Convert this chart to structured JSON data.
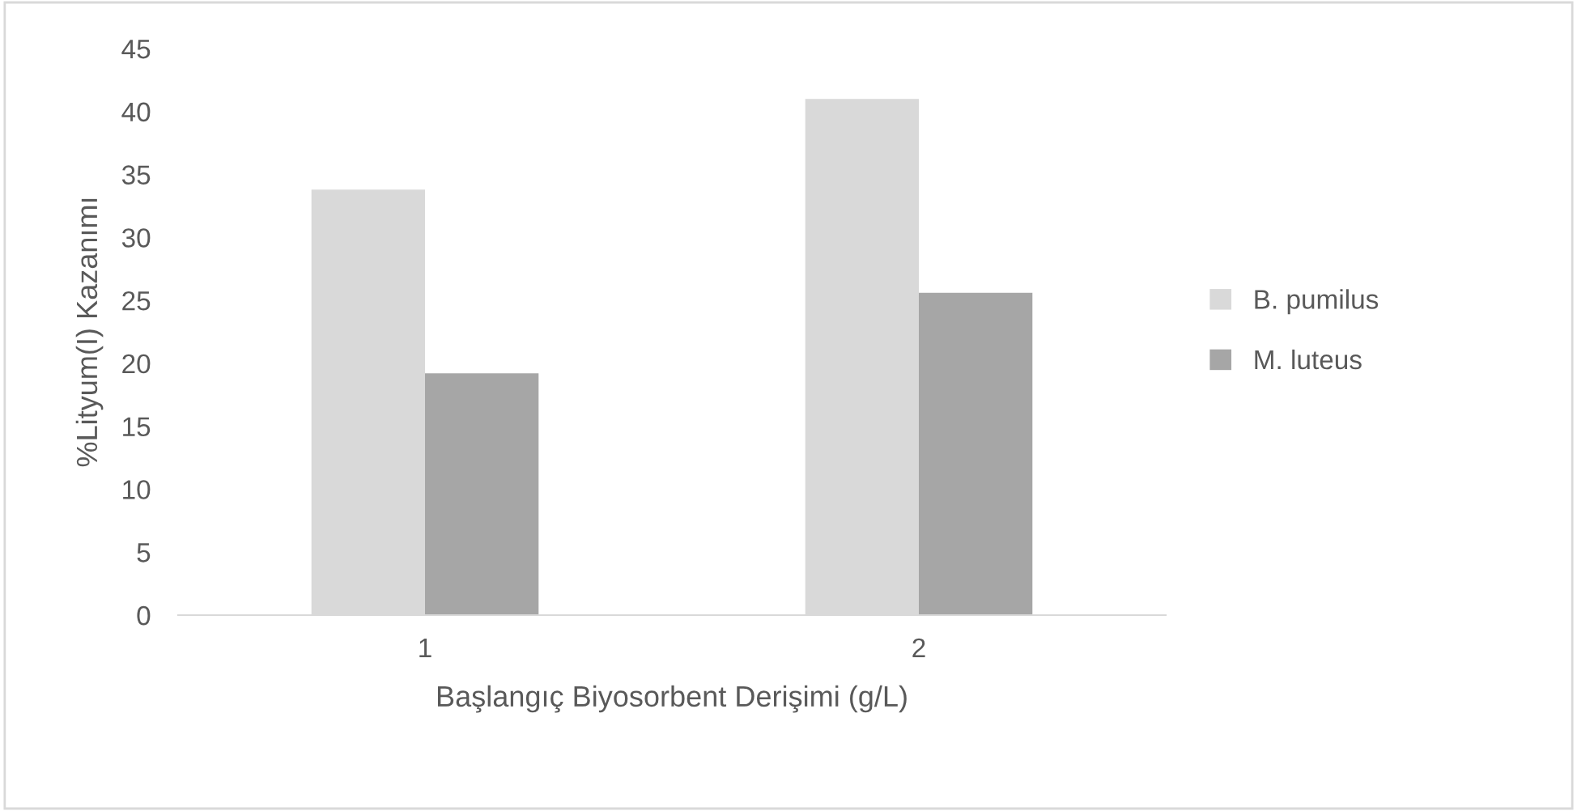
{
  "chart_data": {
    "type": "bar",
    "xlabel": "Başlangıç Biyosorbent Derişimi (g/L)",
    "ylabel": "%Lityum(I) Kazanımı",
    "categories": [
      "1",
      "2"
    ],
    "series": [
      {
        "name": "B. pumilus",
        "color": "#d9d9d9",
        "values": [
          33.8,
          41.0
        ]
      },
      {
        "name": "M. luteus",
        "color": "#a6a6a6",
        "values": [
          19.2,
          25.6
        ]
      }
    ],
    "ylim": [
      0,
      45
    ],
    "yticks": [
      0,
      5,
      10,
      15,
      20,
      25,
      30,
      35,
      40,
      45
    ],
    "grid": false,
    "legend": "right"
  }
}
